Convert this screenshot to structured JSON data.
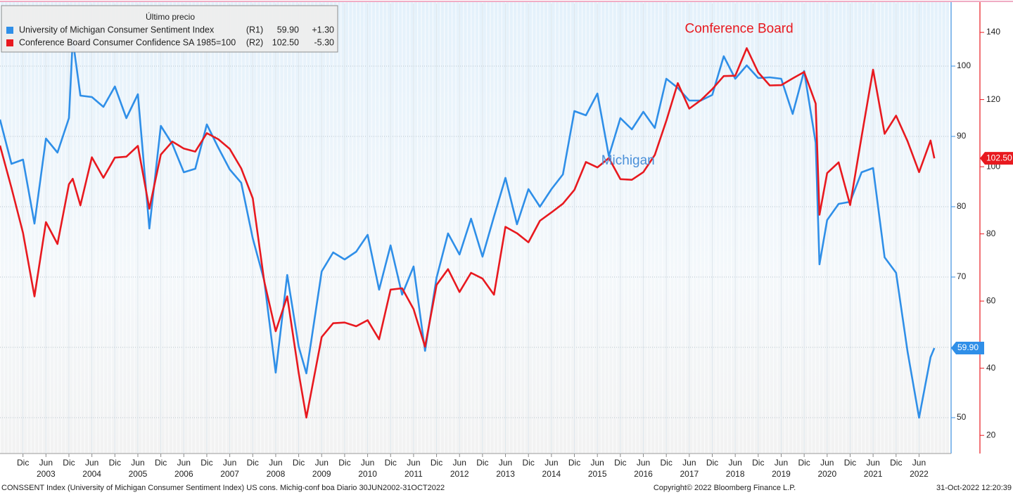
{
  "chart_data": {
    "type": "line",
    "legend_title": "Último precio",
    "annotations": [
      {
        "text": "Conference Board",
        "color": "#e8191f",
        "x": "2018-07",
        "y2": 141
      },
      {
        "text": "Michigan",
        "color": "#4a90d9",
        "x": "2016-02",
        "y": 86.5
      }
    ],
    "footer": {
      "left": "CONSSENT Index (University of Michigan Consumer Sentiment Index) US cons. Michig-conf boa  Diario 30JUN2002-31OCT2022",
      "center": "Copyright© 2022 Bloomberg Finance L.P.",
      "right": "31-Oct-2022 12:20:39"
    },
    "x": [
      "2002-06",
      "2002-09",
      "2002-12",
      "2003-03",
      "2003-06",
      "2003-09",
      "2003-12",
      "2004-01",
      "2004-03",
      "2004-06",
      "2004-09",
      "2004-12",
      "2005-03",
      "2005-06",
      "2005-09",
      "2005-12",
      "2006-03",
      "2006-06",
      "2006-09",
      "2006-12",
      "2007-03",
      "2007-06",
      "2007-09",
      "2007-12",
      "2008-03",
      "2008-06",
      "2008-09",
      "2008-12",
      "2009-02",
      "2009-06",
      "2009-09",
      "2009-12",
      "2010-03",
      "2010-06",
      "2010-09",
      "2010-12",
      "2011-03",
      "2011-06",
      "2011-09",
      "2011-12",
      "2012-03",
      "2012-06",
      "2012-09",
      "2012-12",
      "2013-03",
      "2013-06",
      "2013-09",
      "2013-12",
      "2014-03",
      "2014-06",
      "2014-09",
      "2014-12",
      "2015-03",
      "2015-06",
      "2015-09",
      "2015-12",
      "2016-03",
      "2016-06",
      "2016-09",
      "2016-12",
      "2017-03",
      "2017-06",
      "2017-09",
      "2017-12",
      "2018-03",
      "2018-06",
      "2018-09",
      "2018-12",
      "2019-03",
      "2019-06",
      "2019-09",
      "2019-12",
      "2020-03",
      "2020-04",
      "2020-06",
      "2020-09",
      "2020-12",
      "2021-03",
      "2021-06",
      "2021-09",
      "2021-12",
      "2022-03",
      "2022-06",
      "2022-09",
      "2022-10"
    ],
    "series": [
      {
        "name": "University of Michigan Consumer Sentiment Index",
        "axis_tag": "(R1)",
        "color": "#2f8fe8",
        "axis": "y",
        "last_price": {
          "value": 59.9,
          "label": "59.90"
        },
        "change": {
          "value": 1.3,
          "label": "+1.30"
        },
        "values": [
          92.4,
          86.1,
          86.7,
          77.6,
          89.7,
          87.7,
          92.6,
          103.8,
          95.8,
          95.6,
          94.2,
          97.1,
          92.6,
          96.0,
          76.9,
          91.5,
          88.9,
          84.9,
          85.4,
          91.7,
          88.4,
          85.3,
          83.4,
          75.5,
          69.5,
          56.4,
          70.3,
          60.1,
          56.3,
          70.8,
          73.5,
          72.5,
          73.6,
          76.0,
          68.2,
          74.5,
          67.5,
          71.5,
          59.5,
          69.9,
          76.2,
          73.2,
          78.3,
          72.9,
          78.6,
          84.1,
          77.5,
          82.5,
          80.0,
          82.5,
          84.6,
          93.6,
          93.0,
          96.1,
          87.2,
          92.6,
          91.0,
          93.5,
          91.2,
          98.2,
          96.9,
          95.1,
          95.1,
          95.9,
          101.4,
          98.2,
          100.1,
          98.3,
          98.4,
          98.2,
          93.2,
          99.3,
          89.1,
          71.8,
          78.1,
          80.4,
          80.7,
          84.9,
          85.5,
          72.8,
          70.6,
          59.4,
          50.0,
          58.6,
          59.9
        ]
      },
      {
        "name": "Conference Board Consumer Confidence SA 1985=100",
        "axis_tag": "(R2)",
        "color": "#e8191f",
        "axis": "y2",
        "last_price": {
          "value": 102.5,
          "label": "102.50"
        },
        "change": {
          "value": -5.3,
          "label": "-5.30"
        },
        "values": [
          106.3,
          93.7,
          80.3,
          61.4,
          83.5,
          77.0,
          94.8,
          96.4,
          88.5,
          102.8,
          96.7,
          102.7,
          103.0,
          106.2,
          87.5,
          103.6,
          107.5,
          105.4,
          104.5,
          110.0,
          108.2,
          105.3,
          99.5,
          90.6,
          65.9,
          51.0,
          61.4,
          38.6,
          25.3,
          49.3,
          53.4,
          53.6,
          52.5,
          54.3,
          48.6,
          63.4,
          63.8,
          57.6,
          46.4,
          64.8,
          69.5,
          62.7,
          68.4,
          66.7,
          61.9,
          82.1,
          80.2,
          77.5,
          83.9,
          86.4,
          89.0,
          93.1,
          101.4,
          99.8,
          102.6,
          96.3,
          96.1,
          98.4,
          103.5,
          113.7,
          124.9,
          117.3,
          119.8,
          123.1,
          127.0,
          127.1,
          135.3,
          128.1,
          124.2,
          124.3,
          126.3,
          128.2,
          118.8,
          85.7,
          98.1,
          101.3,
          88.6,
          109.0,
          128.9,
          109.8,
          115.2,
          107.6,
          98.4,
          107.8,
          102.5
        ]
      }
    ],
    "xlim": [
      "2002-06",
      "2023-02"
    ],
    "xticks": [
      {
        "value": "2002-12",
        "label": "Dic"
      },
      {
        "value": "2003-06",
        "label": "Jun"
      },
      {
        "value": "2003-12",
        "label": "Dic"
      },
      {
        "value": "2004-06",
        "label": "Jun"
      },
      {
        "value": "2004-12",
        "label": "Dic"
      },
      {
        "value": "2005-06",
        "label": "Jun"
      },
      {
        "value": "2005-12",
        "label": "Dic"
      },
      {
        "value": "2006-06",
        "label": "Jun"
      },
      {
        "value": "2006-12",
        "label": "Dic"
      },
      {
        "value": "2007-06",
        "label": "Jun"
      },
      {
        "value": "2007-12",
        "label": "Dic"
      },
      {
        "value": "2008-06",
        "label": "Jun"
      },
      {
        "value": "2008-12",
        "label": "Dic"
      },
      {
        "value": "2009-06",
        "label": "Jun"
      },
      {
        "value": "2009-12",
        "label": "Dic"
      },
      {
        "value": "2010-06",
        "label": "Jun"
      },
      {
        "value": "2010-12",
        "label": "Dic"
      },
      {
        "value": "2011-06",
        "label": "Jun"
      },
      {
        "value": "2011-12",
        "label": "Dic"
      },
      {
        "value": "2012-06",
        "label": "Jun"
      },
      {
        "value": "2012-12",
        "label": "Dic"
      },
      {
        "value": "2013-06",
        "label": "Jun"
      },
      {
        "value": "2013-12",
        "label": "Dic"
      },
      {
        "value": "2014-06",
        "label": "Jun"
      },
      {
        "value": "2014-12",
        "label": "Dic"
      },
      {
        "value": "2015-06",
        "label": "Jun"
      },
      {
        "value": "2015-12",
        "label": "Dic"
      },
      {
        "value": "2016-06",
        "label": "Jun"
      },
      {
        "value": "2016-12",
        "label": "Dic"
      },
      {
        "value": "2017-06",
        "label": "Jun"
      },
      {
        "value": "2017-12",
        "label": "Dic"
      },
      {
        "value": "2018-06",
        "label": "Jun"
      },
      {
        "value": "2018-12",
        "label": "Dic"
      },
      {
        "value": "2019-06",
        "label": "Jun"
      },
      {
        "value": "2019-12",
        "label": "Dic"
      },
      {
        "value": "2020-06",
        "label": "Jun"
      },
      {
        "value": "2020-12",
        "label": "Dic"
      },
      {
        "value": "2021-06",
        "label": "Jun"
      },
      {
        "value": "2021-12",
        "label": "Dic"
      },
      {
        "value": "2022-06",
        "label": "Jun"
      }
    ],
    "year_labels": [
      {
        "value": "2003-06",
        "label": "2003"
      },
      {
        "value": "2004-06",
        "label": "2004"
      },
      {
        "value": "2005-06",
        "label": "2005"
      },
      {
        "value": "2006-06",
        "label": "2006"
      },
      {
        "value": "2007-06",
        "label": "2007"
      },
      {
        "value": "2008-06",
        "label": "2008"
      },
      {
        "value": "2009-06",
        "label": "2009"
      },
      {
        "value": "2010-06",
        "label": "2010"
      },
      {
        "value": "2011-06",
        "label": "2011"
      },
      {
        "value": "2012-06",
        "label": "2012"
      },
      {
        "value": "2013-06",
        "label": "2013"
      },
      {
        "value": "2014-06",
        "label": "2014"
      },
      {
        "value": "2015-06",
        "label": "2015"
      },
      {
        "value": "2016-06",
        "label": "2016"
      },
      {
        "value": "2017-06",
        "label": "2017"
      },
      {
        "value": "2018-06",
        "label": "2018"
      },
      {
        "value": "2019-06",
        "label": "2019"
      },
      {
        "value": "2020-06",
        "label": "2020"
      },
      {
        "value": "2021-06",
        "label": "2021"
      },
      {
        "value": "2022-06",
        "label": "2022"
      }
    ],
    "ylim": [
      44.9,
      108.9
    ],
    "yticks": [
      50,
      60,
      70,
      80,
      90,
      100
    ],
    "y2lim": [
      14.6,
      148.6
    ],
    "y2ticks": [
      20,
      40,
      60,
      80,
      100,
      120,
      140
    ],
    "grid": true
  }
}
